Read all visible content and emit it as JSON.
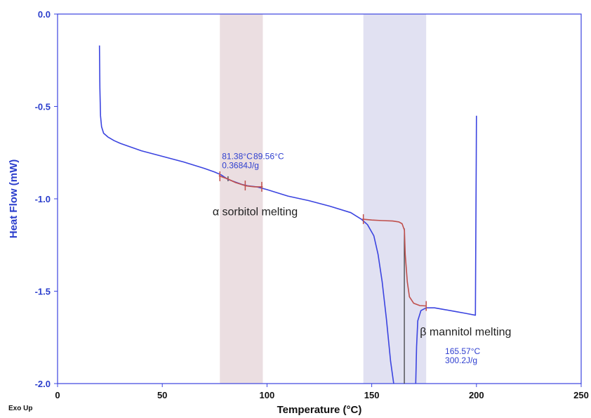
{
  "chart_data": {
    "type": "line",
    "xlabel": "Temperature (°C)",
    "ylabel": "Heat Flow (mW)",
    "corner_label": "Exo Up",
    "xlim": [
      0,
      250
    ],
    "ylim": [
      -2.0,
      0.0
    ],
    "x_ticks": [
      "0",
      "50",
      "100",
      "150",
      "200",
      "250"
    ],
    "y_ticks": [
      "0.0",
      "-0.5",
      "-1.0",
      "-1.5",
      "-2.0"
    ],
    "x_tick_values": [
      0,
      50,
      100,
      150,
      200,
      250
    ],
    "y_tick_values": [
      0.0,
      -0.5,
      -1.0,
      -1.5,
      -2.0
    ],
    "grid": false,
    "colors": {
      "curve": "#3b44e0",
      "baseline": "#c0504d",
      "frame": "#3b44e0",
      "ylabel": "#2a3dcc",
      "sorbitol_band": "#e8d8dc",
      "mannitol_band": "#dcdcf0",
      "vline": "#333333"
    },
    "shaded_regions": [
      {
        "name": "sorbitol",
        "x": [
          77.5,
          98
        ]
      },
      {
        "name": "mannitol",
        "x": [
          146,
          176
        ]
      }
    ],
    "series": [
      {
        "color": "#3b44e0",
        "points": [
          [
            20,
            -0.17
          ],
          [
            20.2,
            -0.4
          ],
          [
            20.5,
            -0.55
          ],
          [
            21,
            -0.61
          ],
          [
            22,
            -0.645
          ],
          [
            24,
            -0.665
          ],
          [
            27,
            -0.685
          ],
          [
            30,
            -0.7
          ],
          [
            40,
            -0.74
          ],
          [
            50,
            -0.77
          ],
          [
            60,
            -0.8
          ],
          [
            70,
            -0.835
          ],
          [
            75,
            -0.855
          ],
          [
            78,
            -0.87
          ],
          [
            81.4,
            -0.895
          ],
          [
            85,
            -0.91
          ],
          [
            88,
            -0.922
          ],
          [
            91,
            -0.93
          ],
          [
            95,
            -0.935
          ],
          [
            100,
            -0.95
          ],
          [
            110,
            -0.985
          ],
          [
            120,
            -1.01
          ],
          [
            130,
            -1.04
          ],
          [
            140,
            -1.075
          ],
          [
            145,
            -1.11
          ],
          [
            148,
            -1.14
          ],
          [
            151,
            -1.2
          ],
          [
            153,
            -1.3
          ],
          [
            155,
            -1.45
          ],
          [
            157,
            -1.65
          ],
          [
            159,
            -1.88
          ],
          [
            160.5,
            -2.0
          ]
        ]
      },
      {
        "color": "#3b44e0",
        "points": [
          [
            171,
            -2.0
          ],
          [
            171.4,
            -1.8
          ],
          [
            172,
            -1.66
          ],
          [
            173.5,
            -1.605
          ],
          [
            176,
            -1.59
          ],
          [
            180,
            -1.59
          ],
          [
            185,
            -1.6
          ],
          [
            190,
            -1.61
          ],
          [
            195,
            -1.62
          ],
          [
            199.5,
            -1.63
          ],
          [
            199.7,
            -1.2
          ],
          [
            199.9,
            -0.8
          ],
          [
            200,
            -0.55
          ]
        ]
      },
      {
        "color": "#c0504d",
        "points": [
          [
            77,
            -0.875
          ],
          [
            81.4,
            -0.893
          ],
          [
            85,
            -0.912
          ],
          [
            90,
            -0.93
          ],
          [
            94,
            -0.935
          ],
          [
            98,
            -0.935
          ]
        ]
      },
      {
        "color": "#c0504d",
        "points": [
          [
            145.5,
            -1.11
          ],
          [
            150,
            -1.115
          ],
          [
            155,
            -1.118
          ],
          [
            160,
            -1.12
          ],
          [
            163,
            -1.125
          ],
          [
            164.5,
            -1.135
          ],
          [
            165.6,
            -1.17
          ],
          [
            166,
            -1.3
          ],
          [
            167,
            -1.45
          ],
          [
            168,
            -1.53
          ],
          [
            170,
            -1.565
          ],
          [
            173,
            -1.578
          ],
          [
            176,
            -1.58
          ]
        ]
      }
    ],
    "vertical_lines": [
      81.4,
      165.57
    ],
    "onset_markers": [
      [
        77.5,
        -0.878
      ],
      [
        89.6,
        -0.928
      ],
      [
        97.5,
        -0.935
      ],
      [
        146,
        -1.11
      ],
      [
        176,
        -1.58
      ]
    ],
    "annotations": [
      {
        "id": "sorbitol_onset_temp",
        "text": "81.38°C",
        "x": 78.5,
        "y": -0.785
      },
      {
        "id": "sorbitol_enthalpy",
        "text": "0.3684J/g",
        "x": 78.5,
        "y": -0.835
      },
      {
        "id": "sorbitol_peak_temp",
        "text": "89.56°C",
        "x": 93.5,
        "y": -0.785
      },
      {
        "id": "sorbitol_event",
        "text": "α sorbitol melting",
        "x": 74,
        "y": -1.09
      },
      {
        "id": "mannitol_event",
        "text": "β mannitol melting",
        "x": 173,
        "y": -1.74
      },
      {
        "id": "mannitol_peak_temp",
        "text": "165.57°C",
        "x": 185,
        "y": -1.84
      },
      {
        "id": "mannitol_enthalpy",
        "text": "300.2J/g",
        "x": 185,
        "y": -1.89
      }
    ]
  }
}
